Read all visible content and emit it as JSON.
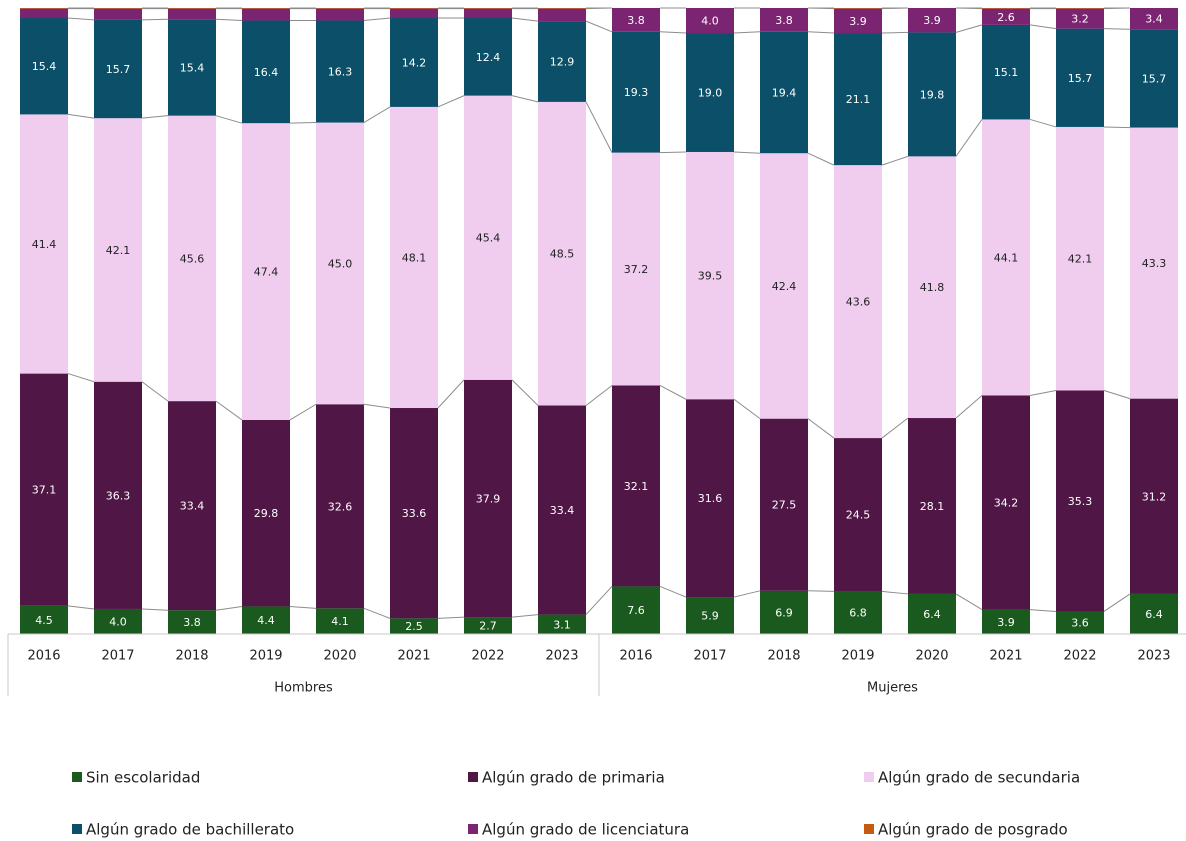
{
  "chart_data": {
    "type": "stacked_bar_100",
    "groups": [
      {
        "name": "Hombres",
        "categories": [
          "2016",
          "2017",
          "2018",
          "2019",
          "2020",
          "2021",
          "2022",
          "2023"
        ]
      },
      {
        "name": "Mujeres",
        "categories": [
          "2016",
          "2017",
          "2018",
          "2019",
          "2020",
          "2021",
          "2022",
          "2023"
        ]
      }
    ],
    "ylim": [
      0,
      100
    ],
    "series": [
      {
        "name": "Sin escolaridad",
        "color": "#1a5a1e",
        "values": [
          4.5,
          4.0,
          3.8,
          4.4,
          4.1,
          2.5,
          2.7,
          3.1,
          7.6,
          5.9,
          6.9,
          6.8,
          6.4,
          3.9,
          3.6,
          6.4
        ],
        "value_labels": [
          "4.5",
          "4.0",
          "3.8",
          "4.4",
          "4.1",
          "2.5",
          "2.7",
          "3.1",
          "7.6",
          "5.9",
          "6.9",
          "6.8",
          "6.4",
          "3.9",
          "3.6",
          "6.4"
        ]
      },
      {
        "name": "Algún grado de primaria",
        "color": "#4f1646",
        "values": [
          37.1,
          36.3,
          33.4,
          29.8,
          32.6,
          33.6,
          37.9,
          33.4,
          32.1,
          31.6,
          27.5,
          24.5,
          28.1,
          34.2,
          35.3,
          31.2
        ],
        "value_labels": [
          "37.1",
          "36.3",
          "33.4",
          "29.8",
          "32.6",
          "33.6",
          "37.9",
          "33.4",
          "32.1",
          "31.6",
          "27.5",
          "24.5",
          "28.1",
          "34.2",
          "35.3",
          "31.2"
        ]
      },
      {
        "name": "Algún grado de secundaria",
        "color": "#f0cdee",
        "values": [
          41.4,
          42.1,
          45.6,
          47.4,
          45.0,
          48.1,
          45.4,
          48.5,
          37.2,
          39.5,
          42.4,
          43.6,
          41.8,
          44.1,
          42.1,
          43.3
        ],
        "value_labels": [
          "41.4",
          "42.1",
          "45.6",
          "47.4",
          "45.0",
          "48.1",
          "45.4",
          "48.5",
          "37.2",
          "39.5",
          "42.4",
          "43.6",
          "41.8",
          "44.1",
          "42.1",
          "43.3"
        ]
      },
      {
        "name": "Algún grado de bachillerato",
        "color": "#0b4f68",
        "values": [
          15.4,
          15.7,
          15.4,
          16.4,
          16.3,
          14.2,
          12.4,
          12.9,
          19.3,
          19.0,
          19.4,
          21.1,
          19.8,
          15.1,
          15.7,
          15.7
        ],
        "value_labels": [
          "15.4",
          "15.7",
          "15.4",
          "16.4",
          "16.3",
          "14.2",
          "12.4",
          "12.9",
          "19.3",
          "19.0",
          "19.4",
          "21.1",
          "19.8",
          "15.1",
          "15.7",
          "15.7"
        ]
      },
      {
        "name": "Algún grado de licenciatura",
        "color": "#7b2572",
        "values": [
          1.5,
          1.8,
          1.7,
          1.9,
          1.9,
          1.5,
          1.5,
          2.0,
          3.8,
          4.0,
          3.8,
          3.9,
          3.9,
          2.6,
          3.2,
          3.4
        ],
        "value_labels": [
          null,
          null,
          null,
          null,
          null,
          null,
          null,
          null,
          "3.8",
          "4.0",
          "3.8",
          "3.9",
          "3.9",
          "2.6",
          "3.2",
          "3.4"
        ]
      },
      {
        "name": "Algún grado de posgrado",
        "color": "#c55a11",
        "values": [
          0.1,
          0.1,
          0.1,
          0.1,
          0.1,
          0.1,
          0.1,
          0.1,
          0,
          0,
          0,
          0.1,
          0,
          0.1,
          0.1,
          0
        ]
      }
    ]
  }
}
